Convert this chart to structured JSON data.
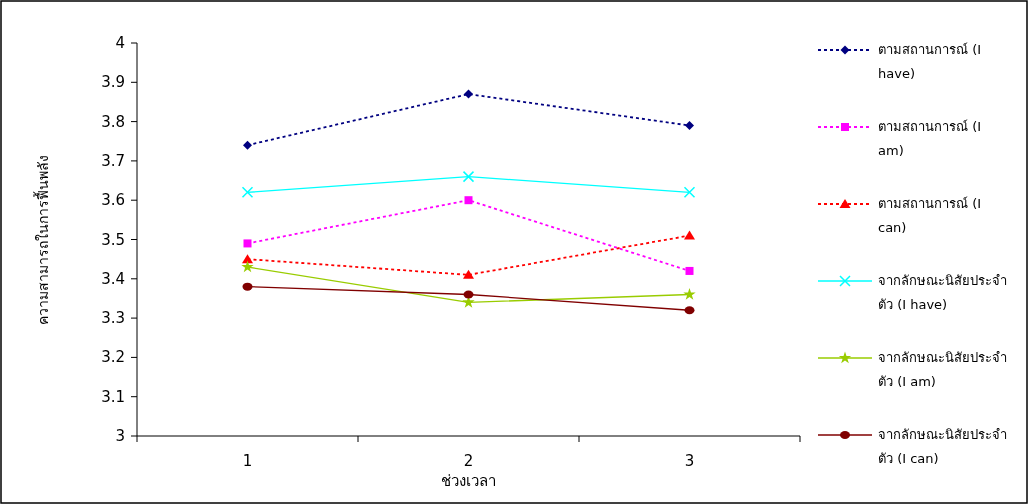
{
  "chart_data": {
    "type": "line",
    "xlabel": "ช่วงเวลา",
    "ylabel": "ความสามารถในการฟื้นพลัง",
    "categories": [
      "1",
      "2",
      "3"
    ],
    "ylim": [
      3,
      4
    ],
    "yticks": [
      3,
      3.1,
      3.2,
      3.3,
      3.4,
      3.5,
      3.6,
      3.7,
      3.8,
      3.9,
      4
    ],
    "grid": false,
    "legend": "right",
    "series": [
      {
        "name": "ตามสถานการณ์ (I have)",
        "color": "#000080",
        "marker": "diamond",
        "line_style": "dotted",
        "values": [
          3.74,
          3.87,
          3.79
        ]
      },
      {
        "name": "ตามสถานการณ์ (I am)",
        "color": "#ff00ff",
        "marker": "square",
        "line_style": "dotted",
        "values": [
          3.49,
          3.6,
          3.42
        ]
      },
      {
        "name": "ตามสถานการณ์ (I can)",
        "color": "#ff0000",
        "marker": "triangle",
        "line_style": "dotted",
        "values": [
          3.45,
          3.41,
          3.51
        ]
      },
      {
        "name": "จากลักษณะนิสัยประจำตัว (I have)",
        "color": "#00ffff",
        "marker": "cross",
        "line_style": "solid",
        "values": [
          3.62,
          3.66,
          3.62
        ]
      },
      {
        "name": "จากลักษณะนิสัยประจำตัว (I am)",
        "color": "#99cc00",
        "marker": "star",
        "line_style": "solid",
        "values": [
          3.43,
          3.34,
          3.36
        ]
      },
      {
        "name": "จากลักษณะนิสัยประจำตัว (I can)",
        "color": "#800000",
        "marker": "circle",
        "line_style": "solid",
        "values": [
          3.38,
          3.36,
          3.32
        ]
      }
    ]
  }
}
